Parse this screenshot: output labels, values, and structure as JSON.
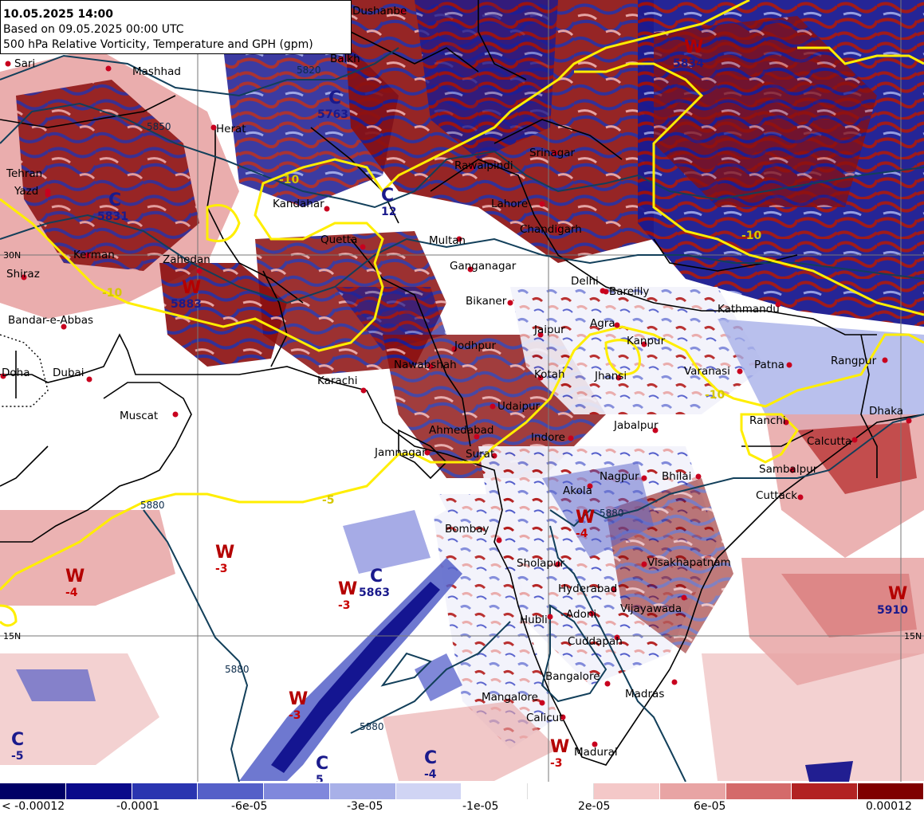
{
  "header": {
    "datetime": "10.05.2025 14:00",
    "based_on": "Based on 09.05.2025 00:00 UTC",
    "product": "500 hPa Relative Vorticity, Temperature and GPH (gpm)"
  },
  "colors": {
    "deep_red": "#7f0000",
    "mid_red": "#b22222",
    "pink": "#e8a4a4",
    "light_blue": "#a8b0e8",
    "mid_blue": "#4a55c8",
    "deep_blue": "#0a0a8a",
    "temp_contour": "#ffee00",
    "gph_contour": "#123f5a"
  },
  "cities": [
    {
      "name": "Dushanbe"
    },
    {
      "name": "Sari"
    },
    {
      "name": "Mashhad"
    },
    {
      "name": "Balkh"
    },
    {
      "name": "Herat"
    },
    {
      "name": "Tehran"
    },
    {
      "name": "Yazd"
    },
    {
      "name": "Kerman"
    },
    {
      "name": "Shiraz"
    },
    {
      "name": "Zahedan"
    },
    {
      "name": "Kandahar"
    },
    {
      "name": "Quetta"
    },
    {
      "name": "Bandar-e-Abbas"
    },
    {
      "name": "Doha"
    },
    {
      "name": "Dubai"
    },
    {
      "name": "Muscat"
    },
    {
      "name": "Karachi"
    },
    {
      "name": "Nawabshah"
    },
    {
      "name": "Jodhpur"
    },
    {
      "name": "Bikaner"
    },
    {
      "name": "Multan"
    },
    {
      "name": "Lahore"
    },
    {
      "name": "Rawalpindi"
    },
    {
      "name": "Srinagar"
    },
    {
      "name": "Chandigarh"
    },
    {
      "name": "Ganganagar"
    },
    {
      "name": "Delhi"
    },
    {
      "name": "Bareilly"
    },
    {
      "name": "Jaipur"
    },
    {
      "name": "Agra"
    },
    {
      "name": "Kanpur"
    },
    {
      "name": "Kathmandu"
    },
    {
      "name": "Patna"
    },
    {
      "name": "Rangpur"
    },
    {
      "name": "Varanasi"
    },
    {
      "name": "Jhansi"
    },
    {
      "name": "Kotah"
    },
    {
      "name": "Udaipur"
    },
    {
      "name": "Ahmedabad"
    },
    {
      "name": "Indore"
    },
    {
      "name": "Jabalpur"
    },
    {
      "name": "Ranchi"
    },
    {
      "name": "Dhaka"
    },
    {
      "name": "Calcutta"
    },
    {
      "name": "Jamnagar"
    },
    {
      "name": "Surat"
    },
    {
      "name": "Akola"
    },
    {
      "name": "Nagpur"
    },
    {
      "name": "Bhilai"
    },
    {
      "name": "Sambalpur"
    },
    {
      "name": "Cuttack"
    },
    {
      "name": "Bombay"
    },
    {
      "name": "Sholapur"
    },
    {
      "name": "Hyderabad"
    },
    {
      "name": "Visakhapatnam"
    },
    {
      "name": "Vijayawada"
    },
    {
      "name": "Adoni"
    },
    {
      "name": "Hubli"
    },
    {
      "name": "Cuddapah"
    },
    {
      "name": "Bangalore"
    },
    {
      "name": "Madras"
    },
    {
      "name": "Mangalore"
    },
    {
      "name": "Calicut"
    },
    {
      "name": "Madurai"
    }
  ],
  "systems": [
    {
      "type": "W",
      "value": "5834"
    },
    {
      "type": "C",
      "value": "5763"
    },
    {
      "type": "C",
      "value": "5831"
    },
    {
      "type": "C",
      "value": "12"
    },
    {
      "type": "W",
      "value": "5883"
    },
    {
      "type": "W",
      "value": "-4"
    },
    {
      "type": "W",
      "value": "-3"
    },
    {
      "type": "W",
      "value": "-3"
    },
    {
      "type": "C",
      "value": "5863"
    },
    {
      "type": "W",
      "value": "-4"
    },
    {
      "type": "W",
      "value": "5910"
    },
    {
      "type": "W",
      "value": "-3"
    },
    {
      "type": "C",
      "value": "-5"
    },
    {
      "type": "C",
      "value": "-4"
    },
    {
      "type": "W",
      "value": "-3"
    },
    {
      "type": "C",
      "value": "5"
    }
  ],
  "gph_labels": [
    "5820",
    "5850",
    "5880",
    "5880",
    "5880",
    "5880"
  ],
  "temp_labels": [
    "-10",
    "-5",
    "-10",
    "-10",
    "-10"
  ],
  "grid_labels": {
    "lat_30": "30N",
    "lat_15_left": "15N",
    "lat_15_right": "15N"
  },
  "colorbar": {
    "colors": [
      "#000066",
      "#0a0a8a",
      "#2a35b0",
      "#5560c8",
      "#8088dc",
      "#a8b0e8",
      "#d0d4f4",
      "#ffffff",
      "#ffffff",
      "#f4c8c8",
      "#e8a4a4",
      "#d46a6a",
      "#b22222",
      "#7f0000"
    ],
    "labels": [
      "< -0.00012",
      "-0.0001",
      "-6e-05",
      "-3e-05",
      "-1e-05",
      "2e-05",
      "6e-05",
      "0.00012"
    ]
  }
}
